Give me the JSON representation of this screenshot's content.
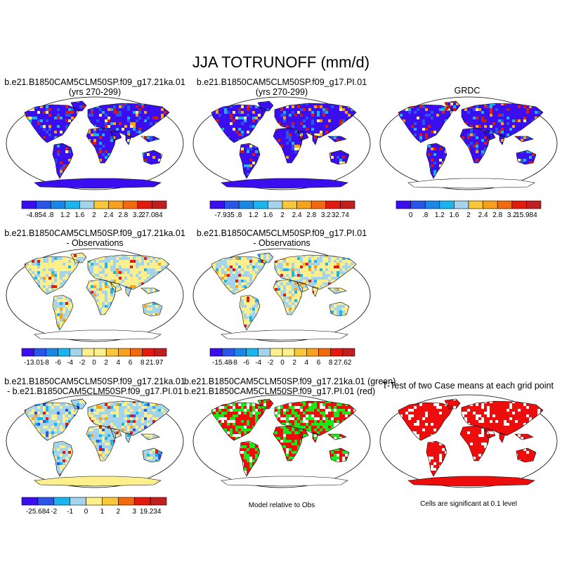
{
  "title": "JJA TOTRUNOFF (mm/d)",
  "colors": {
    "runoff": [
      "#3b0ef0",
      "#2a55e8",
      "#1a87e8",
      "#1ab4ee",
      "#a3d4ec",
      "#fdf08c",
      "#f8c83a",
      "#f7a11c",
      "#f26a0e",
      "#e31a0e",
      "#c11f1f"
    ],
    "diff": [
      "#3b0ef0",
      "#2a55e8",
      "#1a87e8",
      "#1ab4ee",
      "#a3d4ec",
      "#fdf08c",
      "#f8c83a",
      "#f7a11c",
      "#f26a0e",
      "#e31a0e",
      "#c11f1f"
    ],
    "green": "#19e819",
    "red": "#ee0d0d",
    "antarctica_yellow": "#fdf08c",
    "antarctica_blue": "#3b0ef0",
    "antarctica_red": "#ee0d0d"
  },
  "panels": [
    {
      "id": "p1",
      "title1": "b.e21.B1850CAM5CLM50SP.f09_g17.21ka.01",
      "title2": "(yrs 270-299)",
      "kind": "runoff",
      "antarctica": "blue",
      "labels": [
        "-4.854",
        ".8",
        "1.2",
        "1.6",
        "2",
        "2.4",
        "2.8",
        "3.2",
        "27.084"
      ]
    },
    {
      "id": "p2",
      "title1": "b.e21.B1850CAM5CLM50SP.f09_g17.PI.01",
      "title2": "(yrs 270-299)",
      "kind": "runoff",
      "antarctica": "blue",
      "labels": [
        "-7.935",
        ".8",
        "1.2",
        "1.6",
        "2",
        "2.4",
        "2.8",
        "3.2",
        "32.74"
      ]
    },
    {
      "id": "p3",
      "title1": "GRDC",
      "title2": "",
      "kind": "runoff",
      "antarctica": "white",
      "labels": [
        "0",
        ".8",
        "1.2",
        "1.6",
        "2",
        "2.4",
        "2.8",
        "3.2",
        "15.984"
      ]
    },
    {
      "id": "p4",
      "title1": "b.e21.B1850CAM5CLM50SP.f09_g17.21ka.01",
      "title2": "- Observations",
      "kind": "diff",
      "antarctica": "white",
      "labels": [
        "-13.01",
        "-8",
        "-6",
        "-4",
        "-2",
        "0",
        "2",
        "4",
        "6",
        "8",
        "21.97"
      ]
    },
    {
      "id": "p5",
      "title1": "b.e21.B1850CAM5CLM50SP.f09_g17.PI.01",
      "title2": "- Observations",
      "kind": "diff",
      "antarctica": "white",
      "labels": [
        "-15.48",
        "-8",
        "-6",
        "-4",
        "-2",
        "0",
        "2",
        "4",
        "6",
        "8",
        "27.62"
      ]
    },
    {
      "id": "p7",
      "title1": "b.e21.B1850CAM5CLM50SP.f09_g17.21ka.01",
      "title2": "- b.e21.B1850CAM5CLM50SP.f09_g17.PI.01",
      "kind": "diff2",
      "antarctica": "yellow",
      "labels": [
        "-25.684",
        "-2",
        "-1",
        "0",
        "1",
        "2",
        "3",
        "19.234"
      ]
    },
    {
      "id": "p8",
      "title1": "b.e21.B1850CAM5CLM50SP.f09_g17.21ka.01 (green)",
      "title2": "b.e21.B1850CAM5CLM50SP.f09_g17.PI.01 (red)",
      "kind": "compare",
      "antarctica": "white",
      "note": "Model relative to Obs"
    },
    {
      "id": "p9",
      "title1": "T-Test of two Case means at each grid point",
      "title2": "",
      "kind": "ttest",
      "antarctica": "red",
      "note": "Cells are significant at 0.1 level"
    }
  ]
}
